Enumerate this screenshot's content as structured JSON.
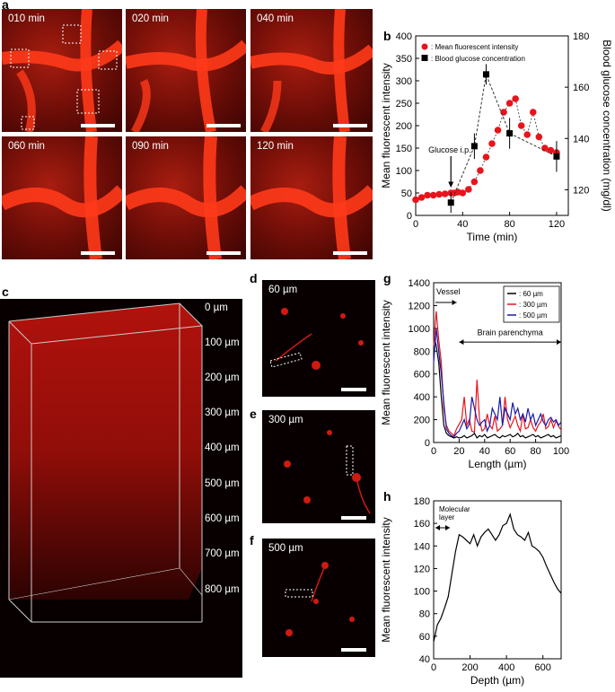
{
  "panel_letters": {
    "a": "a",
    "b": "b",
    "c": "c",
    "d": "d",
    "e": "e",
    "f": "f",
    "g": "g",
    "h": "h"
  },
  "panel_a": {
    "times": [
      "010 min",
      "020 min",
      "040 min",
      "060 min",
      "090 min",
      "120 min"
    ]
  },
  "panel_c": {
    "depths": [
      "0 µm",
      "100 µm",
      "200 µm",
      "300 µm",
      "400 µm",
      "500 µm",
      "600 µm",
      "700 µm",
      "800 µm"
    ]
  },
  "panel_def": {
    "d_label": "60 µm",
    "e_label": "300 µm",
    "f_label": "500 µm"
  },
  "colors": {
    "red": "#e8141b",
    "black": "#000000",
    "blue": "#1a1aa8",
    "vessel": "#ff3a1a"
  },
  "chart_data": [
    {
      "id": "b",
      "type": "scatter",
      "xlabel": "Time (min)",
      "ylabel": "Mean fluorescent intensity",
      "y2label": "Blood glucose concentration (mg/dl)",
      "xlim": [
        0,
        130
      ],
      "ylim": [
        0,
        400
      ],
      "y2lim": [
        110,
        180
      ],
      "xticks": [
        0,
        40,
        80,
        120
      ],
      "yticks": [
        0,
        50,
        100,
        150,
        200,
        250,
        300,
        350,
        400
      ],
      "y2ticks": [
        120,
        140,
        160,
        180
      ],
      "annotation": "Glucose i.p.",
      "legend": [
        ": Mean fluorescent intensity",
        ": Blood glucose concentration"
      ],
      "series": [
        {
          "name": ": Mean fluorescent intensity",
          "x": [
            0,
            5,
            10,
            15,
            20,
            25,
            30,
            33,
            36,
            40,
            45,
            50,
            55,
            60,
            65,
            70,
            75,
            80,
            85,
            90,
            95,
            100,
            105,
            110,
            115,
            120
          ],
          "y": [
            35,
            40,
            45,
            45,
            47,
            48,
            50,
            50,
            52,
            50,
            58,
            75,
            100,
            130,
            160,
            190,
            230,
            250,
            260,
            200,
            180,
            230,
            175,
            150,
            145,
            140
          ]
        },
        {
          "name": ": Blood glucose concentration",
          "x": [
            30,
            50,
            60,
            80,
            120
          ],
          "y": [
            115,
            137,
            165,
            142,
            133
          ],
          "err": [
            4,
            5,
            4,
            6,
            6
          ]
        }
      ]
    },
    {
      "id": "g",
      "type": "line",
      "xlabel": "Length (µm)",
      "ylabel": "Mean fluorescent intensity",
      "xlim": [
        0,
        100
      ],
      "ylim": [
        0,
        1400
      ],
      "xticks": [
        0,
        20,
        40,
        60,
        80,
        100
      ],
      "yticks": [
        0,
        200,
        400,
        600,
        800,
        1000,
        1200,
        1400
      ],
      "annotations": {
        "vessel": "Vessel",
        "parenchyma": "Brain parenchyma"
      },
      "x": [
        0,
        2,
        4,
        6,
        8,
        10,
        12,
        14,
        16,
        18,
        20,
        22,
        24,
        26,
        28,
        30,
        32,
        34,
        36,
        38,
        40,
        42,
        44,
        46,
        48,
        50,
        52,
        54,
        56,
        58,
        60,
        62,
        64,
        66,
        68,
        70,
        72,
        74,
        76,
        78,
        80,
        82,
        84,
        86,
        88,
        90,
        92,
        94,
        96,
        98,
        100
      ],
      "series": [
        {
          "name": ": 60 µm",
          "values": [
            950,
            850,
            700,
            400,
            150,
            80,
            60,
            50,
            40,
            50,
            40,
            45,
            60,
            40,
            50,
            60,
            80,
            40,
            60,
            50,
            70,
            40,
            50,
            60,
            70,
            50,
            40,
            60,
            50,
            60,
            70,
            50,
            60,
            80,
            50,
            60,
            40,
            50,
            60,
            70,
            50,
            60,
            40,
            50,
            60,
            70,
            50,
            60,
            40,
            50,
            60
          ]
        },
        {
          "name": ": 300 µm",
          "values": [
            850,
            1150,
            900,
            700,
            300,
            150,
            100,
            80,
            60,
            120,
            160,
            200,
            400,
            150,
            200,
            100,
            90,
            550,
            200,
            100,
            120,
            250,
            150,
            120,
            230,
            100,
            120,
            150,
            400,
            200,
            130,
            180,
            230,
            150,
            100,
            250,
            120,
            130,
            200,
            130,
            100,
            150,
            180,
            250,
            120,
            140,
            200,
            130,
            190,
            140,
            110
          ]
        },
        {
          "name": ": 500 µm",
          "values": [
            700,
            1000,
            800,
            600,
            350,
            120,
            80,
            60,
            50,
            80,
            100,
            150,
            200,
            120,
            160,
            400,
            300,
            200,
            150,
            180,
            200,
            100,
            150,
            300,
            250,
            200,
            400,
            150,
            300,
            250,
            200,
            350,
            250,
            300,
            200,
            250,
            180,
            300,
            200,
            250,
            150,
            200,
            250,
            180,
            150,
            200,
            220,
            180,
            200,
            150,
            180
          ]
        }
      ]
    },
    {
      "id": "h",
      "type": "line",
      "xlabel": "Depth (µm)",
      "ylabel": "Mean fluorescent intensity",
      "xlim": [
        0,
        700
      ],
      "ylim": [
        40,
        180
      ],
      "xticks": [
        0,
        200,
        400,
        600
      ],
      "yticks": [
        40,
        60,
        80,
        100,
        120,
        140,
        160,
        180
      ],
      "annotation": "Molecular layer",
      "series": [
        {
          "name": "",
          "x": [
            0,
            20,
            40,
            60,
            80,
            100,
            120,
            140,
            160,
            180,
            200,
            220,
            240,
            260,
            280,
            300,
            320,
            340,
            360,
            380,
            400,
            420,
            440,
            460,
            480,
            500,
            520,
            540,
            560,
            580,
            600,
            620,
            640,
            660,
            680,
            700
          ],
          "y": [
            55,
            70,
            76,
            85,
            95,
            115,
            135,
            150,
            148,
            145,
            142,
            150,
            140,
            148,
            152,
            155,
            150,
            145,
            150,
            158,
            160,
            168,
            155,
            150,
            148,
            145,
            152,
            140,
            138,
            135,
            130,
            122,
            115,
            108,
            102,
            98
          ]
        }
      ]
    }
  ]
}
